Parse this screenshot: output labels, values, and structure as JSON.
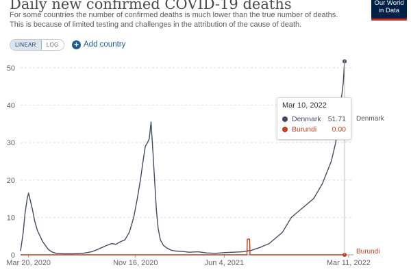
{
  "header": {
    "title": "Daily new confirmed COVID-19 deaths",
    "subtitle": "For some countries the number of confirmed deaths is much lower than the true number of deaths. This is because of limited testing and challenges in the attribution of the cause of death.",
    "logo_line1": "Our World",
    "logo_line2": "in Data"
  },
  "controls": {
    "linear_label": "LINEAR",
    "log_label": "LOG",
    "add_country_label": "Add country"
  },
  "tooltip": {
    "date": "Mar 10, 2022",
    "rows": [
      {
        "name": "Denmark",
        "value": "51.71",
        "color": "#3f4c5f"
      },
      {
        "name": "Burundi",
        "value": "0.00",
        "color": "#c43d1b"
      }
    ]
  },
  "chart_data": {
    "type": "line",
    "title": "Daily new confirmed COVID-19 deaths",
    "ylim": [
      0,
      52
    ],
    "yticks": [
      0,
      10,
      20,
      30,
      40,
      50
    ],
    "x_range_days": [
      0,
      750
    ],
    "x_ticks": [
      {
        "label": "Mar 20, 2020",
        "day": 18
      },
      {
        "label": "Nov 16, 2020",
        "day": 259
      },
      {
        "label": "Jun 4, 2021",
        "day": 459
      },
      {
        "label": "Mar 11, 2022",
        "day": 739
      }
    ],
    "series": [
      {
        "name": "Denmark",
        "color": "#3f4c5f",
        "end_label": "Denmark",
        "points": [
          [
            0,
            1
          ],
          [
            6,
            6
          ],
          [
            10,
            11
          ],
          [
            15,
            15
          ],
          [
            18,
            16.5
          ],
          [
            22,
            14.5
          ],
          [
            27,
            12
          ],
          [
            32,
            9
          ],
          [
            38,
            6.5
          ],
          [
            44,
            5
          ],
          [
            50,
            3.5
          ],
          [
            56,
            2.5
          ],
          [
            62,
            1.5
          ],
          [
            70,
            0.8
          ],
          [
            80,
            0.4
          ],
          [
            95,
            0.3
          ],
          [
            120,
            0.3
          ],
          [
            140,
            0.4
          ],
          [
            160,
            0.8
          ],
          [
            175,
            1.5
          ],
          [
            190,
            2.3
          ],
          [
            205,
            3
          ],
          [
            215,
            2.8
          ],
          [
            225,
            3.5
          ],
          [
            235,
            4
          ],
          [
            245,
            6
          ],
          [
            255,
            10
          ],
          [
            263,
            15
          ],
          [
            270,
            20
          ],
          [
            276,
            25
          ],
          [
            281,
            29
          ],
          [
            286,
            30
          ],
          [
            290,
            31
          ],
          [
            294,
            35.5
          ],
          [
            298,
            28
          ],
          [
            302,
            20
          ],
          [
            306,
            12
          ],
          [
            310,
            7
          ],
          [
            315,
            4
          ],
          [
            322,
            2.5
          ],
          [
            330,
            1.8
          ],
          [
            340,
            1.2
          ],
          [
            350,
            1
          ],
          [
            365,
            0.9
          ],
          [
            380,
            0.7
          ],
          [
            400,
            0.8
          ],
          [
            420,
            0.5
          ],
          [
            440,
            0.4
          ],
          [
            460,
            0.6
          ],
          [
            480,
            0.7
          ],
          [
            500,
            0.8
          ],
          [
            520,
            1.2
          ],
          [
            540,
            2
          ],
          [
            560,
            3
          ],
          [
            575,
            4.5
          ],
          [
            590,
            6
          ],
          [
            600,
            8
          ],
          [
            610,
            10
          ],
          [
            620,
            11
          ],
          [
            630,
            12
          ],
          [
            640,
            13
          ],
          [
            650,
            14
          ],
          [
            660,
            15
          ],
          [
            670,
            17
          ],
          [
            680,
            19
          ],
          [
            690,
            22
          ],
          [
            700,
            25
          ],
          [
            710,
            30
          ],
          [
            716,
            36
          ],
          [
            720,
            40
          ],
          [
            724,
            43
          ],
          [
            727,
            46
          ],
          [
            730,
            51.71
          ]
        ]
      },
      {
        "name": "Burundi",
        "color": "#c43d1b",
        "end_label": "Burundi",
        "points": [
          [
            0,
            0
          ],
          [
            510,
            0
          ],
          [
            511,
            4.2
          ],
          [
            516,
            4.2
          ],
          [
            517,
            0
          ],
          [
            730,
            0
          ]
        ]
      }
    ]
  }
}
